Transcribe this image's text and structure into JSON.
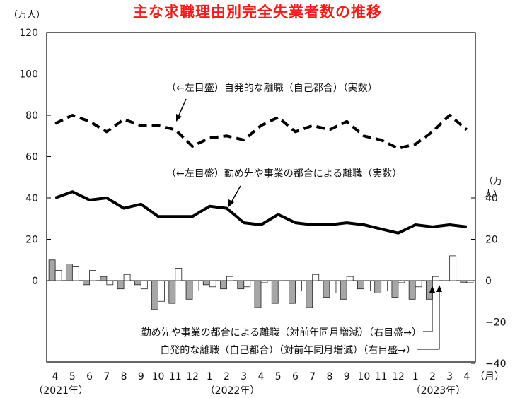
{
  "chart_data": {
    "type": "bar+line",
    "title": "主な求職理由別完全失業者数の推移",
    "left_axis": {
      "unit": "（万人）",
      "ylim": [
        0,
        120
      ],
      "ticks": [
        0,
        20,
        40,
        60,
        80,
        100,
        120
      ]
    },
    "right_axis": {
      "unit": "（万人）",
      "ylim": [
        -40,
        40
      ],
      "ticks": [
        -40,
        -20,
        0,
        20,
        40
      ]
    },
    "x_unit": "（月）",
    "categories": [
      "4",
      "5",
      "6",
      "7",
      "8",
      "9",
      "10",
      "11",
      "12",
      "1",
      "2",
      "3",
      "4",
      "5",
      "6",
      "7",
      "8",
      "9",
      "10",
      "11",
      "12",
      "1",
      "2",
      "3",
      "4"
    ],
    "year_labels": [
      {
        "text": "（2021年）",
        "index": 0
      },
      {
        "text": "（2022年）",
        "index": 10
      },
      {
        "text": "（2023年）",
        "index": 22
      }
    ],
    "series": [
      {
        "name": "自発的な離職（自己都合）（実数）",
        "axis": "left",
        "style": "dashed-line",
        "values": [
          76,
          80,
          77,
          72,
          78,
          75,
          75,
          73,
          65,
          69,
          70,
          68,
          75,
          79,
          72,
          75,
          73,
          77,
          70,
          68,
          64,
          66,
          72,
          80,
          73
        ]
      },
      {
        "name": "勤め先や事業の都合による離職（実数）",
        "axis": "left",
        "style": "solid-line",
        "values": [
          40,
          43,
          39,
          40,
          35,
          37,
          31,
          31,
          31,
          36,
          35,
          28,
          27,
          32,
          28,
          27,
          27,
          28,
          27,
          25,
          23,
          27,
          26,
          27,
          26
        ]
      },
      {
        "name": "勤め先や事業の都合による離職（対前年同月増減）",
        "axis": "right",
        "style": "gray-bar",
        "values": [
          10,
          8,
          -2,
          2,
          -4,
          -2,
          -14,
          -11,
          -9,
          -2,
          -4,
          -4,
          -13,
          -11,
          -11,
          -13,
          -8,
          -9,
          -4,
          -6,
          -8,
          -9,
          -9,
          0,
          -1
        ]
      },
      {
        "name": "自発的な離職（自己都合）（対前年同月増減）",
        "axis": "right",
        "style": "white-bar",
        "values": [
          5,
          7,
          5,
          -2,
          3,
          -4,
          -10,
          6,
          -5,
          -3,
          2,
          -3,
          -1,
          0,
          -5,
          3,
          -6,
          2,
          -5,
          -5,
          -1,
          -3,
          2,
          12,
          -1
        ]
      }
    ],
    "annotations": [
      {
        "text": "（←左目盛）自発的な離職（自己都合）（実数）"
      },
      {
        "text": "（←左目盛）勤め先や事業の都合による離職（実数）"
      },
      {
        "text": "勤め先や事業の都合による離職（対前年同月増減）（右目盛→）"
      },
      {
        "text": "自発的な離職（自己都合）（対前年同月増減）（右目盛→）"
      }
    ]
  }
}
